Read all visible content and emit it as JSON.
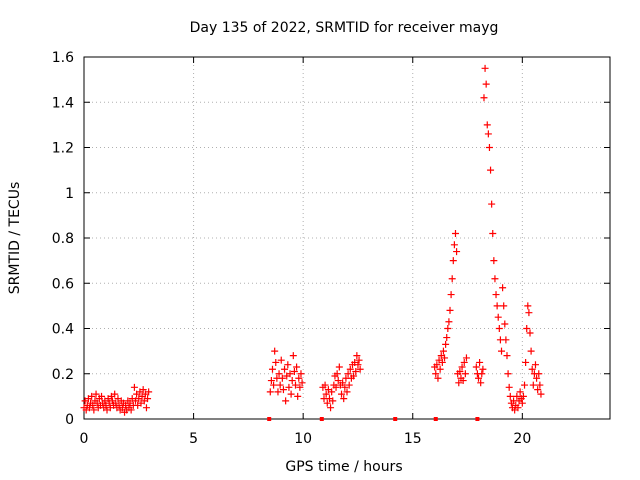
{
  "chart_data": {
    "type": "scatter",
    "title": "Day 135 of 2022, SRMTID for receiver mayg",
    "xlabel": "GPS time / hours",
    "ylabel": "SRMTID / TECUs",
    "xlim": [
      0,
      24
    ],
    "ylim": [
      0,
      1.6
    ],
    "xticks": [
      0,
      5,
      10,
      15,
      20
    ],
    "xtick_labels": [
      "0",
      "5",
      "10",
      "15",
      "20"
    ],
    "yticks": [
      0,
      0.2,
      0.4,
      0.6,
      0.8,
      1.0,
      1.2,
      1.4,
      1.6
    ],
    "ytick_labels": [
      "0",
      "0.2",
      "0.4",
      "0.6",
      "0.8",
      "1",
      "1.2",
      "1.4",
      "1.6"
    ],
    "grid": true,
    "marker": "+",
    "color": "#ff0000",
    "baseline_markers_x": [
      8.45,
      10.85,
      14.2,
      16.05,
      17.95
    ],
    "series": [
      {
        "name": "SRMTID",
        "points": [
          [
            0.0,
            0.05
          ],
          [
            0.05,
            0.08
          ],
          [
            0.1,
            0.04
          ],
          [
            0.15,
            0.06
          ],
          [
            0.2,
            0.09
          ],
          [
            0.25,
            0.05
          ],
          [
            0.3,
            0.07
          ],
          [
            0.35,
            0.1
          ],
          [
            0.4,
            0.06
          ],
          [
            0.45,
            0.04
          ],
          [
            0.5,
            0.08
          ],
          [
            0.55,
            0.11
          ],
          [
            0.6,
            0.07
          ],
          [
            0.65,
            0.05
          ],
          [
            0.7,
            0.09
          ],
          [
            0.75,
            0.06
          ],
          [
            0.8,
            0.1
          ],
          [
            0.85,
            0.07
          ],
          [
            0.9,
            0.05
          ],
          [
            0.95,
            0.08
          ],
          [
            1.0,
            0.06
          ],
          [
            1.05,
            0.04
          ],
          [
            1.1,
            0.09
          ],
          [
            1.15,
            0.07
          ],
          [
            1.2,
            0.05
          ],
          [
            1.25,
            0.1
          ],
          [
            1.3,
            0.08
          ],
          [
            1.35,
            0.06
          ],
          [
            1.4,
            0.11
          ],
          [
            1.45,
            0.07
          ],
          [
            1.5,
            0.05
          ],
          [
            1.55,
            0.09
          ],
          [
            1.6,
            0.06
          ],
          [
            1.65,
            0.04
          ],
          [
            1.7,
            0.08
          ],
          [
            1.75,
            0.05
          ],
          [
            1.8,
            0.07
          ],
          [
            1.85,
            0.03
          ],
          [
            1.9,
            0.06
          ],
          [
            1.95,
            0.04
          ],
          [
            2.0,
            0.08
          ],
          [
            2.05,
            0.05
          ],
          [
            2.1,
            0.07
          ],
          [
            2.15,
            0.04
          ],
          [
            2.2,
            0.09
          ],
          [
            2.25,
            0.06
          ],
          [
            2.3,
            0.14
          ],
          [
            2.35,
            0.08
          ],
          [
            2.4,
            0.11
          ],
          [
            2.45,
            0.06
          ],
          [
            2.5,
            0.09
          ],
          [
            2.55,
            0.12
          ],
          [
            2.6,
            0.07
          ],
          [
            2.65,
            0.1
          ],
          [
            2.7,
            0.13
          ],
          [
            2.75,
            0.08
          ],
          [
            2.8,
            0.11
          ],
          [
            2.85,
            0.05
          ],
          [
            2.9,
            0.09
          ],
          [
            2.95,
            0.12
          ],
          [
            8.5,
            0.12
          ],
          [
            8.55,
            0.17
          ],
          [
            8.6,
            0.22
          ],
          [
            8.65,
            0.15
          ],
          [
            8.7,
            0.3
          ],
          [
            8.75,
            0.25
          ],
          [
            8.8,
            0.18
          ],
          [
            8.85,
            0.12
          ],
          [
            8.9,
            0.2
          ],
          [
            8.95,
            0.15
          ],
          [
            9.0,
            0.26
          ],
          [
            9.05,
            0.18
          ],
          [
            9.1,
            0.13
          ],
          [
            9.15,
            0.22
          ],
          [
            9.2,
            0.08
          ],
          [
            9.25,
            0.19
          ],
          [
            9.3,
            0.24
          ],
          [
            9.35,
            0.14
          ],
          [
            9.4,
            0.2
          ],
          [
            9.45,
            0.11
          ],
          [
            9.5,
            0.17
          ],
          [
            9.55,
            0.28
          ],
          [
            9.6,
            0.21
          ],
          [
            9.65,
            0.15
          ],
          [
            9.7,
            0.23
          ],
          [
            9.75,
            0.1
          ],
          [
            9.8,
            0.18
          ],
          [
            9.85,
            0.14
          ],
          [
            9.9,
            0.2
          ],
          [
            9.95,
            0.16
          ],
          [
            10.9,
            0.14
          ],
          [
            10.95,
            0.09
          ],
          [
            11.0,
            0.15
          ],
          [
            11.05,
            0.11
          ],
          [
            11.1,
            0.07
          ],
          [
            11.15,
            0.13
          ],
          [
            11.2,
            0.09
          ],
          [
            11.25,
            0.05
          ],
          [
            11.3,
            0.12
          ],
          [
            11.35,
            0.08
          ],
          [
            11.4,
            0.15
          ],
          [
            11.45,
            0.19
          ],
          [
            11.5,
            0.14
          ],
          [
            11.55,
            0.2
          ],
          [
            11.6,
            0.17
          ],
          [
            11.65,
            0.23
          ],
          [
            11.7,
            0.15
          ],
          [
            11.75,
            0.11
          ],
          [
            11.8,
            0.16
          ],
          [
            11.85,
            0.09
          ],
          [
            11.9,
            0.14
          ],
          [
            11.95,
            0.18
          ],
          [
            12.0,
            0.12
          ],
          [
            12.05,
            0.2
          ],
          [
            12.1,
            0.15
          ],
          [
            12.15,
            0.22
          ],
          [
            12.2,
            0.18
          ],
          [
            12.25,
            0.24
          ],
          [
            12.3,
            0.19
          ],
          [
            12.35,
            0.25
          ],
          [
            12.4,
            0.21
          ],
          [
            12.45,
            0.28
          ],
          [
            12.5,
            0.24
          ],
          [
            12.55,
            0.26
          ],
          [
            12.6,
            0.22
          ],
          [
            16.0,
            0.23
          ],
          [
            16.05,
            0.2
          ],
          [
            16.1,
            0.24
          ],
          [
            16.15,
            0.18
          ],
          [
            16.2,
            0.26
          ],
          [
            16.25,
            0.22
          ],
          [
            16.3,
            0.28
          ],
          [
            16.35,
            0.25
          ],
          [
            16.4,
            0.3
          ],
          [
            16.45,
            0.27
          ],
          [
            16.5,
            0.33
          ],
          [
            16.55,
            0.36
          ],
          [
            16.6,
            0.4
          ],
          [
            16.65,
            0.43
          ],
          [
            16.7,
            0.48
          ],
          [
            16.75,
            0.55
          ],
          [
            16.8,
            0.62
          ],
          [
            16.85,
            0.7
          ],
          [
            16.9,
            0.77
          ],
          [
            16.95,
            0.82
          ],
          [
            17.0,
            0.74
          ],
          [
            17.05,
            0.2
          ],
          [
            17.1,
            0.16
          ],
          [
            17.15,
            0.21
          ],
          [
            17.2,
            0.18
          ],
          [
            17.25,
            0.23
          ],
          [
            17.3,
            0.17
          ],
          [
            17.35,
            0.25
          ],
          [
            17.4,
            0.2
          ],
          [
            17.45,
            0.27
          ],
          [
            17.9,
            0.23
          ],
          [
            17.95,
            0.2
          ],
          [
            18.0,
            0.18
          ],
          [
            18.05,
            0.25
          ],
          [
            18.1,
            0.16
          ],
          [
            18.15,
            0.2
          ],
          [
            18.2,
            0.22
          ],
          [
            18.25,
            1.42
          ],
          [
            18.3,
            1.55
          ],
          [
            18.35,
            1.48
          ],
          [
            18.4,
            1.3
          ],
          [
            18.45,
            1.26
          ],
          [
            18.5,
            1.2
          ],
          [
            18.55,
            1.1
          ],
          [
            18.6,
            0.95
          ],
          [
            18.65,
            0.82
          ],
          [
            18.7,
            0.7
          ],
          [
            18.75,
            0.62
          ],
          [
            18.8,
            0.55
          ],
          [
            18.85,
            0.5
          ],
          [
            18.9,
            0.45
          ],
          [
            18.95,
            0.4
          ],
          [
            19.0,
            0.35
          ],
          [
            19.05,
            0.3
          ],
          [
            19.1,
            0.58
          ],
          [
            19.15,
            0.5
          ],
          [
            19.2,
            0.42
          ],
          [
            19.25,
            0.35
          ],
          [
            19.3,
            0.28
          ],
          [
            19.35,
            0.2
          ],
          [
            19.4,
            0.14
          ],
          [
            19.45,
            0.1
          ],
          [
            19.5,
            0.07
          ],
          [
            19.55,
            0.05
          ],
          [
            19.6,
            0.08
          ],
          [
            19.65,
            0.04
          ],
          [
            19.7,
            0.06
          ],
          [
            19.75,
            0.1
          ],
          [
            19.8,
            0.05
          ],
          [
            19.85,
            0.08
          ],
          [
            19.9,
            0.12
          ],
          [
            19.95,
            0.09
          ],
          [
            20.0,
            0.07
          ],
          [
            20.05,
            0.1
          ],
          [
            20.1,
            0.15
          ],
          [
            20.15,
            0.25
          ],
          [
            20.2,
            0.4
          ],
          [
            20.25,
            0.5
          ],
          [
            20.3,
            0.47
          ],
          [
            20.35,
            0.38
          ],
          [
            20.4,
            0.3
          ],
          [
            20.45,
            0.22
          ],
          [
            20.5,
            0.15
          ],
          [
            20.55,
            0.2
          ],
          [
            20.6,
            0.24
          ],
          [
            20.65,
            0.18
          ],
          [
            20.7,
            0.13
          ],
          [
            20.75,
            0.2
          ],
          [
            20.8,
            0.15
          ],
          [
            20.85,
            0.11
          ]
        ]
      }
    ]
  }
}
